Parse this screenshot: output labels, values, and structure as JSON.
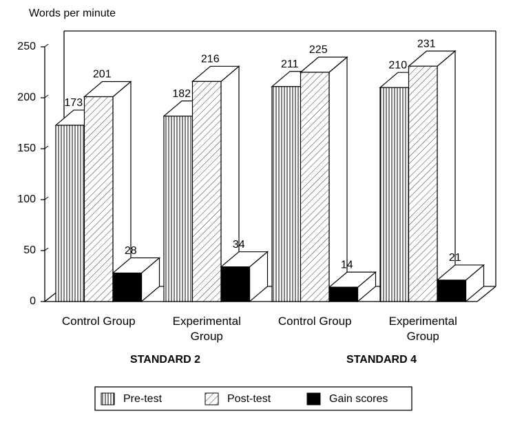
{
  "chart_data": {
    "type": "bar3d",
    "y_label": "Words per minute",
    "categories": [
      "Control Group",
      "Experimental Group",
      "Control Group",
      "Experimental Group"
    ],
    "groups": [
      "STANDARD 2",
      "STANDARD 4"
    ],
    "series": [
      {
        "name": "Pre-test",
        "pattern": "vertical",
        "color": "#000000",
        "values": [
          173,
          182,
          211,
          210
        ]
      },
      {
        "name": "Post-test",
        "pattern": "diagonal",
        "color": "#000000",
        "values": [
          201,
          216,
          225,
          231
        ]
      },
      {
        "name": "Gain scores",
        "pattern": "solid",
        "color": "#000000",
        "values": [
          28,
          34,
          14,
          21
        ]
      }
    ],
    "ylim": [
      0,
      250
    ],
    "yticks": [
      0,
      50,
      100,
      150,
      200,
      250
    ]
  }
}
